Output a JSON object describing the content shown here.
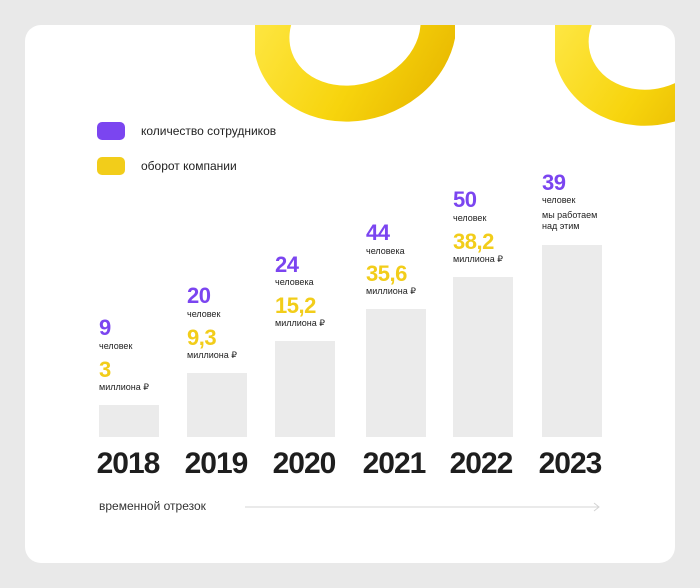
{
  "legend": [
    {
      "label": "количество сотрудников",
      "color": "#7b45f0"
    },
    {
      "label": "оборот компании",
      "color": "#f2cd1a"
    }
  ],
  "axis_label": "временной отрезок",
  "chart_data": {
    "type": "bar",
    "categories": [
      "2018",
      "2019",
      "2020",
      "2021",
      "2022",
      "2023"
    ],
    "series": [
      {
        "name": "количество сотрудников",
        "values": [
          9,
          20,
          24,
          44,
          50,
          39
        ],
        "unit": "человек",
        "unit_labels": [
          "человек",
          "человек",
          "человека",
          "человека",
          "человек",
          "человек"
        ]
      },
      {
        "name": "оборот компании",
        "values": [
          3,
          9.3,
          15.2,
          35.6,
          38.2,
          null
        ],
        "display": [
          "3",
          "9,3",
          "15,2",
          "35,6",
          "38,2",
          null
        ],
        "unit_label": "миллиона ₽"
      }
    ],
    "notes": {
      "2023": "мы работаем над этим"
    }
  }
}
